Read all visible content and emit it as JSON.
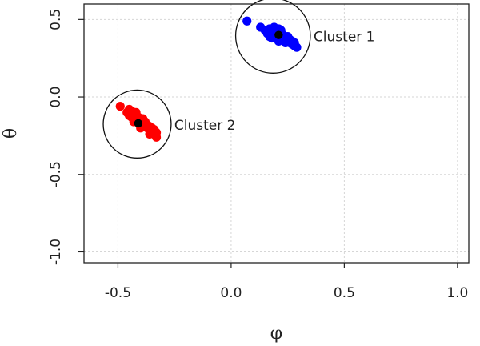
{
  "chart_data": {
    "type": "scatter",
    "title": "",
    "xlabel": "φ",
    "ylabel": "θ",
    "xlim": [
      -0.65,
      1.05
    ],
    "ylim": [
      -1.07,
      0.6
    ],
    "grid": true,
    "x_ticks": [
      {
        "value": -0.5,
        "label": "-0.5"
      },
      {
        "value": 0.0,
        "label": "0.0"
      },
      {
        "value": 0.5,
        "label": "0.5"
      },
      {
        "value": 1.0,
        "label": "1.0"
      }
    ],
    "y_ticks": [
      {
        "value": -1.0,
        "label": "-1.0"
      },
      {
        "value": -0.5,
        "label": "-0.5"
      },
      {
        "value": 0.0,
        "label": "0.0"
      },
      {
        "value": 0.5,
        "label": "0.5"
      }
    ],
    "series": [
      {
        "name": "Cluster 1",
        "color": "#0000ff",
        "points": [
          [
            0.07,
            0.49
          ],
          [
            0.13,
            0.45
          ],
          [
            0.15,
            0.43
          ],
          [
            0.16,
            0.41
          ],
          [
            0.17,
            0.44
          ],
          [
            0.18,
            0.42
          ],
          [
            0.18,
            0.38
          ],
          [
            0.19,
            0.45
          ],
          [
            0.19,
            0.4
          ],
          [
            0.2,
            0.43
          ],
          [
            0.2,
            0.38
          ],
          [
            0.21,
            0.41
          ],
          [
            0.21,
            0.36
          ],
          [
            0.22,
            0.39
          ],
          [
            0.22,
            0.43
          ],
          [
            0.23,
            0.37
          ],
          [
            0.23,
            0.4
          ],
          [
            0.24,
            0.38
          ],
          [
            0.24,
            0.35
          ],
          [
            0.25,
            0.36
          ],
          [
            0.25,
            0.39
          ],
          [
            0.26,
            0.35
          ],
          [
            0.26,
            0.37
          ],
          [
            0.27,
            0.34
          ],
          [
            0.27,
            0.36
          ],
          [
            0.28,
            0.33
          ],
          [
            0.28,
            0.35
          ],
          [
            0.29,
            0.32
          ],
          [
            0.17,
            0.39
          ],
          [
            0.21,
            0.44
          ]
        ]
      },
      {
        "name": "Cluster 2",
        "color": "#ff0000",
        "points": [
          [
            -0.49,
            -0.06
          ],
          [
            -0.46,
            -0.1
          ],
          [
            -0.45,
            -0.08
          ],
          [
            -0.44,
            -0.13
          ],
          [
            -0.44,
            -0.09
          ],
          [
            -0.43,
            -0.12
          ],
          [
            -0.42,
            -0.14
          ],
          [
            -0.42,
            -0.1
          ],
          [
            -0.41,
            -0.16
          ],
          [
            -0.41,
            -0.13
          ],
          [
            -0.4,
            -0.15
          ],
          [
            -0.4,
            -0.18
          ],
          [
            -0.39,
            -0.17
          ],
          [
            -0.39,
            -0.14
          ],
          [
            -0.38,
            -0.19
          ],
          [
            -0.38,
            -0.16
          ],
          [
            -0.37,
            -0.2
          ],
          [
            -0.37,
            -0.18
          ],
          [
            -0.36,
            -0.21
          ],
          [
            -0.36,
            -0.19
          ],
          [
            -0.35,
            -0.22
          ],
          [
            -0.35,
            -0.2
          ],
          [
            -0.34,
            -0.24
          ],
          [
            -0.34,
            -0.21
          ],
          [
            -0.33,
            -0.23
          ],
          [
            -0.33,
            -0.26
          ],
          [
            -0.43,
            -0.16
          ],
          [
            -0.45,
            -0.12
          ],
          [
            -0.4,
            -0.2
          ],
          [
            -0.36,
            -0.24
          ]
        ]
      }
    ],
    "centroids": [
      {
        "label": "Cluster 1",
        "x": 0.21,
        "y": 0.4,
        "color": "#000000"
      },
      {
        "label": "Cluster 2",
        "x": -0.41,
        "y": -0.17,
        "color": "#000000"
      }
    ],
    "cluster_circles": [
      {
        "label": "Cluster 1",
        "cx": 0.185,
        "cy": 0.395,
        "r_data": 0.165
      },
      {
        "label": "Cluster 2",
        "cx": -0.415,
        "cy": -0.175,
        "r_data": 0.15
      }
    ]
  }
}
